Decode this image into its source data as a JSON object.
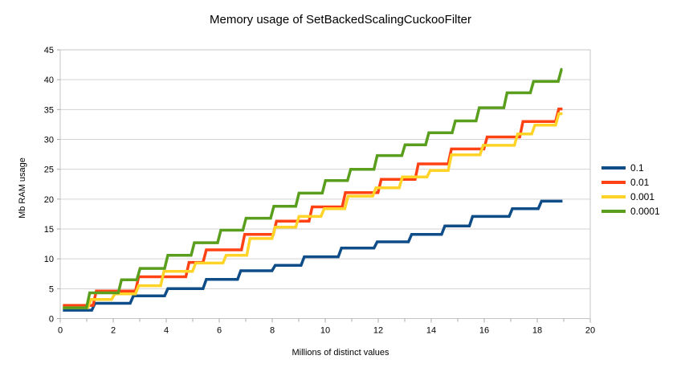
{
  "title": "Memory usage of SetBackedScalingCuckooFilter",
  "chart_data": {
    "type": "line",
    "line_style": "step",
    "title": "Memory usage of SetBackedScalingCuckooFilter",
    "xlabel": "Millions of distinct values",
    "ylabel": "Mb RAM usage",
    "xlim": [
      0,
      20
    ],
    "ylim": [
      0,
      45
    ],
    "xticks_major": [
      0,
      2,
      4,
      6,
      8,
      10,
      12,
      14,
      16,
      18,
      20
    ],
    "xticks_minor": [
      1,
      3,
      5,
      7,
      9,
      11,
      13,
      15,
      17,
      19
    ],
    "yticks": [
      0,
      5,
      10,
      15,
      20,
      25,
      30,
      35,
      40,
      45
    ],
    "grid": "horizontal",
    "grid_color": "#d3d3d3",
    "plot_border_color": "#c6c6c6",
    "tick_color": "#a9a9a9",
    "legend_position": "right",
    "series": [
      {
        "name": "0.1",
        "color": "#0e4d87",
        "points": [
          [
            0.1,
            1.4
          ],
          [
            1.25,
            2.55
          ],
          [
            2.7,
            3.8
          ],
          [
            4.0,
            5.0
          ],
          [
            5.45,
            6.55
          ],
          [
            6.75,
            8.0
          ],
          [
            8.05,
            8.9
          ],
          [
            9.15,
            10.35
          ],
          [
            10.55,
            11.8
          ],
          [
            11.9,
            12.85
          ],
          [
            13.2,
            14.1
          ],
          [
            14.45,
            15.5
          ],
          [
            15.5,
            17.1
          ],
          [
            17.0,
            18.4
          ],
          [
            18.1,
            19.65
          ],
          [
            18.95,
            19.65
          ]
        ]
      },
      {
        "name": "0.01",
        "color": "#ff4214",
        "points": [
          [
            0.1,
            2.2
          ],
          [
            1.3,
            4.6
          ],
          [
            2.9,
            7.0
          ],
          [
            4.8,
            9.4
          ],
          [
            5.45,
            11.5
          ],
          [
            6.9,
            14.1
          ],
          [
            8.1,
            16.3
          ],
          [
            9.45,
            18.7
          ],
          [
            10.7,
            21.1
          ],
          [
            12.05,
            23.3
          ],
          [
            13.45,
            25.9
          ],
          [
            14.7,
            28.4
          ],
          [
            16.05,
            30.4
          ],
          [
            17.4,
            33.0
          ],
          [
            18.75,
            35.1
          ],
          [
            18.95,
            35.1
          ]
        ]
      },
      {
        "name": "0.001",
        "color": "#ffd327",
        "points": [
          [
            0.1,
            1.8
          ],
          [
            1.1,
            3.2
          ],
          [
            2.0,
            4.15
          ],
          [
            2.9,
            5.5
          ],
          [
            3.85,
            7.9
          ],
          [
            5.05,
            9.3
          ],
          [
            6.2,
            10.6
          ],
          [
            7.1,
            13.4
          ],
          [
            8.05,
            15.3
          ],
          [
            8.95,
            17.1
          ],
          [
            9.9,
            18.4
          ],
          [
            10.8,
            20.5
          ],
          [
            11.85,
            21.9
          ],
          [
            12.85,
            23.7
          ],
          [
            13.9,
            24.8
          ],
          [
            14.7,
            27.4
          ],
          [
            15.9,
            29.0
          ],
          [
            17.2,
            30.9
          ],
          [
            17.85,
            32.4
          ],
          [
            18.75,
            34.3
          ],
          [
            18.95,
            34.3
          ]
        ]
      },
      {
        "name": "0.0001",
        "color": "#5a9e1e",
        "points": [
          [
            0.1,
            1.8
          ],
          [
            1.05,
            4.3
          ],
          [
            2.25,
            6.5
          ],
          [
            2.95,
            8.4
          ],
          [
            4.0,
            10.6
          ],
          [
            5.0,
            12.7
          ],
          [
            6.0,
            14.8
          ],
          [
            6.95,
            16.8
          ],
          [
            8.0,
            18.8
          ],
          [
            8.95,
            21.0
          ],
          [
            9.95,
            23.1
          ],
          [
            10.9,
            25.0
          ],
          [
            11.9,
            27.3
          ],
          [
            12.95,
            29.1
          ],
          [
            13.85,
            31.1
          ],
          [
            14.85,
            33.1
          ],
          [
            15.75,
            35.3
          ],
          [
            16.8,
            37.8
          ],
          [
            17.8,
            39.7
          ],
          [
            18.85,
            41.7
          ],
          [
            18.95,
            41.7
          ]
        ]
      }
    ]
  }
}
